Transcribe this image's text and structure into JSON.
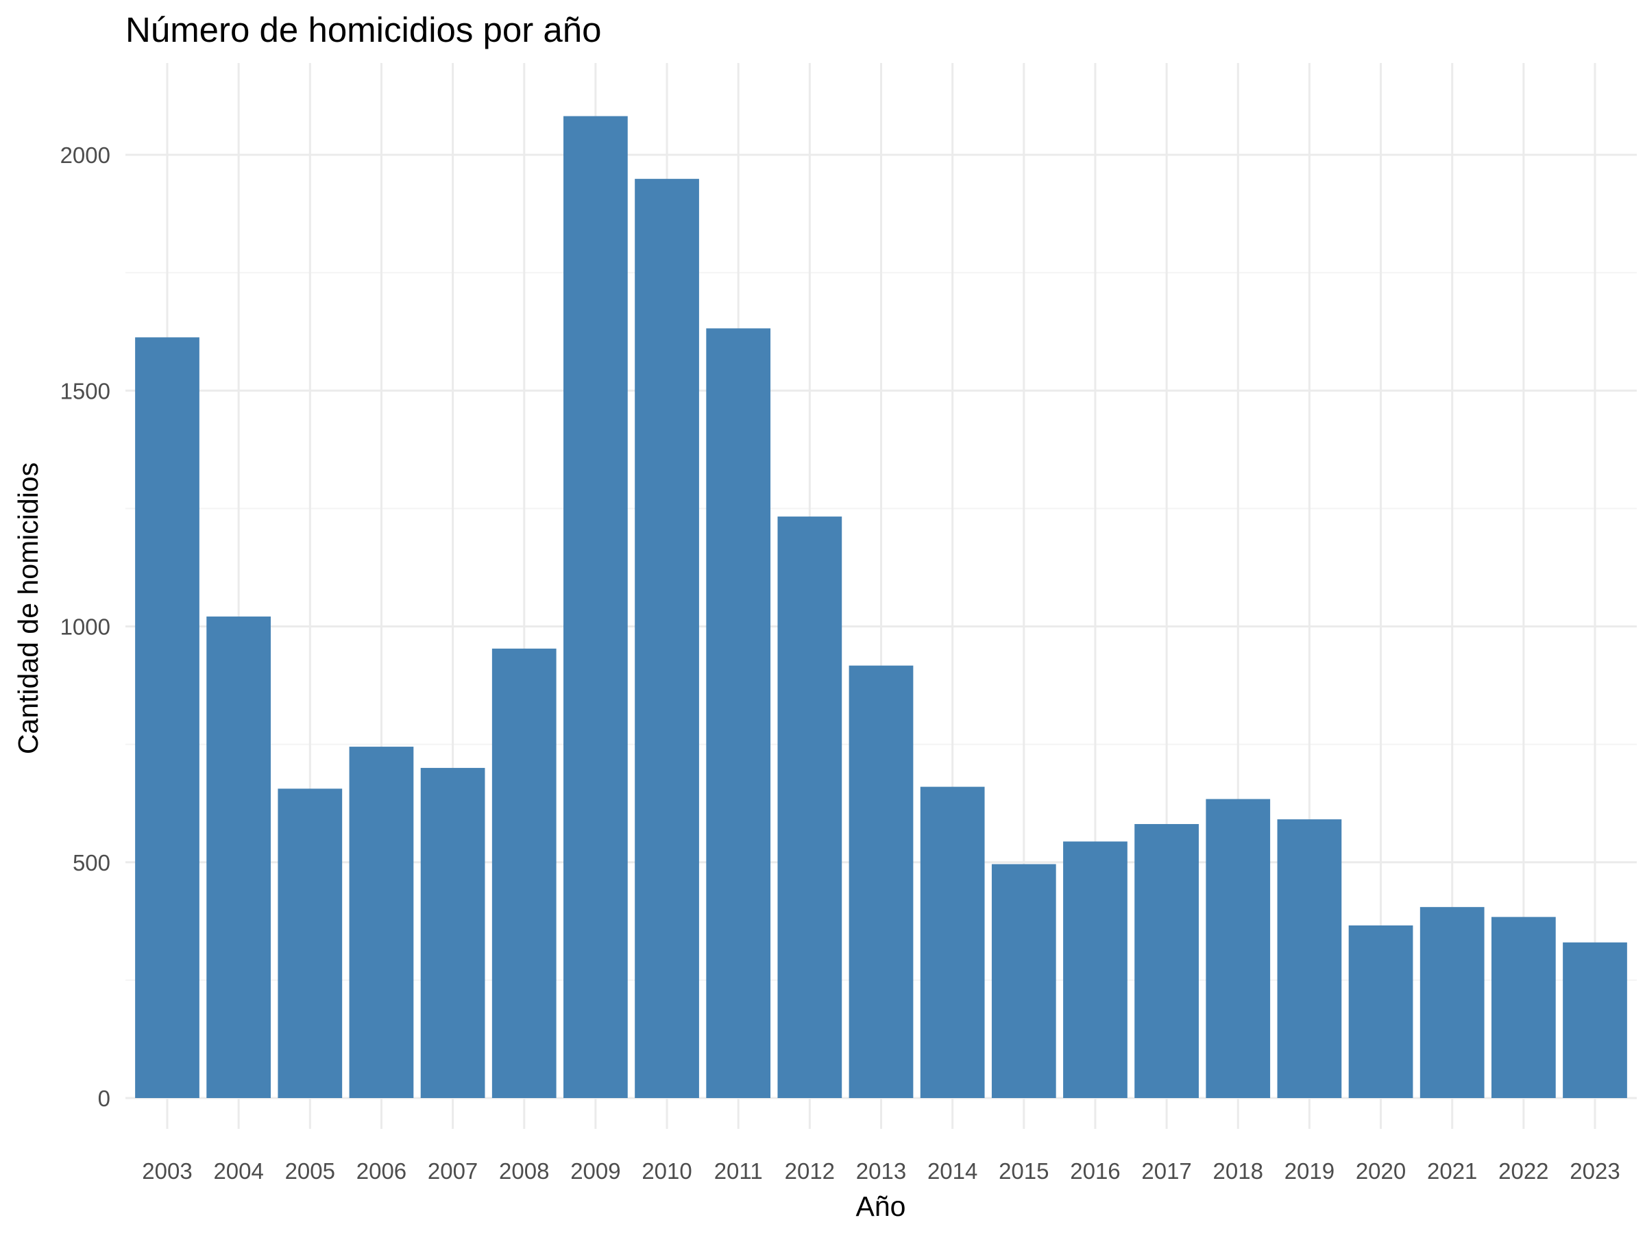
{
  "chart_data": {
    "type": "bar",
    "title": "Número de homicidios por año",
    "xlabel": "Año",
    "ylabel": "Cantidad de homicidios",
    "categories": [
      "2003",
      "2004",
      "2005",
      "2006",
      "2007",
      "2008",
      "2009",
      "2010",
      "2011",
      "2012",
      "2013",
      "2014",
      "2015",
      "2016",
      "2017",
      "2018",
      "2019",
      "2020",
      "2021",
      "2022",
      "2023"
    ],
    "values": [
      1613,
      1021,
      656,
      745,
      700,
      953,
      2082,
      1949,
      1632,
      1233,
      917,
      660,
      496,
      544,
      581,
      634,
      591,
      366,
      405,
      384,
      330
    ],
    "ylim": [
      -50,
      2250
    ],
    "y_ticks": [
      0,
      500,
      1000,
      1500,
      2000
    ],
    "y_tick_labels": [
      "0",
      "500",
      "1000",
      "1500",
      "2000"
    ],
    "grid": true,
    "legend": "none",
    "colors": {
      "bar": "#4682B4",
      "grid_major": "#EBEBEB",
      "grid_minor": "#F4F4F4",
      "tick_text": "#4D4D4D",
      "title_text": "#000000"
    }
  }
}
